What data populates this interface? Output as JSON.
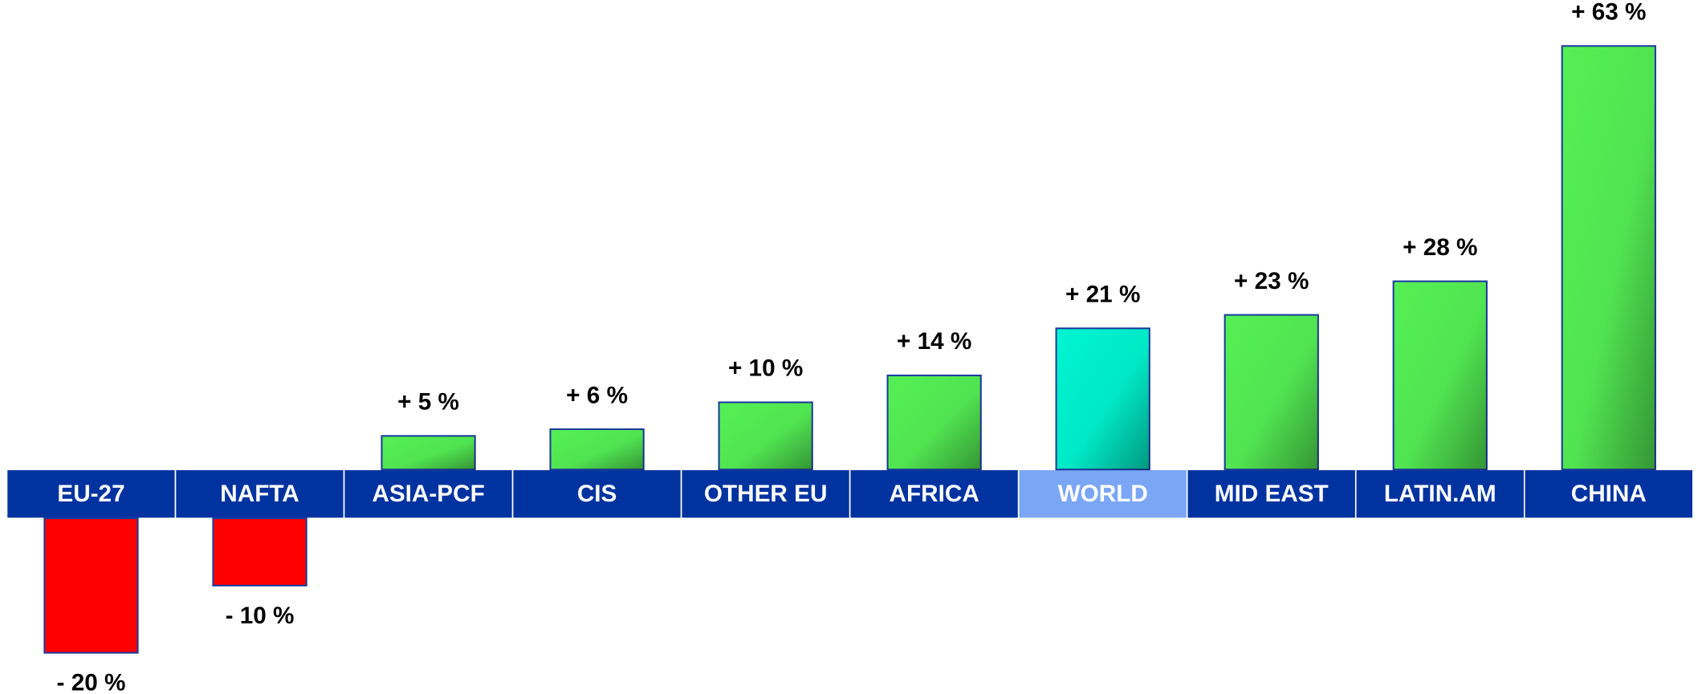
{
  "chart_data": {
    "type": "bar",
    "categories": [
      "EU-27",
      "NAFTA",
      "ASIA-PCF",
      "CIS",
      "OTHER EU",
      "AFRICA",
      "WORLD",
      "MID EAST",
      "LATIN.AM",
      "CHINA"
    ],
    "values": [
      -20,
      -10,
      5,
      6,
      10,
      14,
      21,
      23,
      28,
      63
    ],
    "value_labels": [
      "-  20 %",
      "- 10 %",
      "+ 5 %",
      "+ 6 %",
      "+ 10 %",
      "+ 14 %",
      "+ 21 %",
      "+ 23 %",
      "+ 28  %",
      "+ 63 %"
    ],
    "colors": [
      "#ff0000",
      "#ff0000",
      "#55f055",
      "#55f055",
      "#55f055",
      "#55f055",
      "#00f5d0",
      "#55f055",
      "#55f055",
      "#55f055"
    ],
    "band_color": "#0033a0",
    "highlight_band_color": "#7aa6f5",
    "highlight": "WORLD"
  }
}
